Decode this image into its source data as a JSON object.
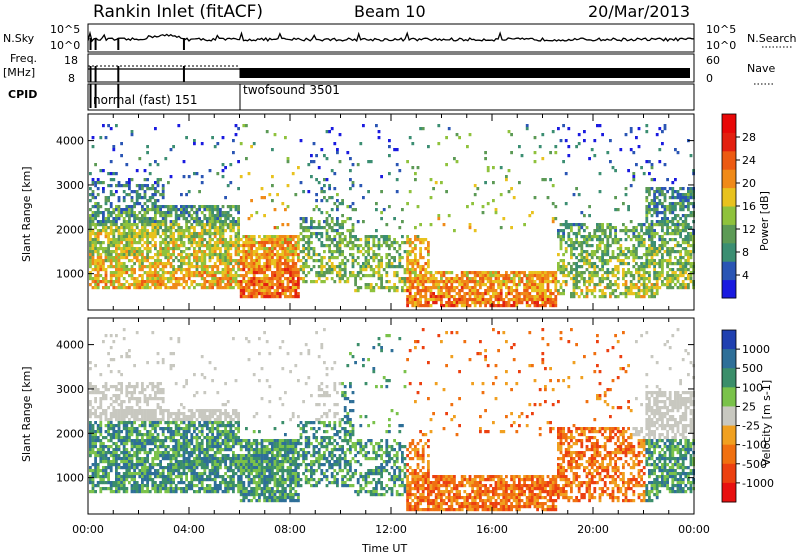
{
  "header": {
    "station": "Rankin Inlet (fitACF)",
    "beam": "Beam 10",
    "date": "20/Mar/2013"
  },
  "top_panels": {
    "nsky_label": "N.Sky",
    "nsearch_label": "N.Search",
    "nsky_ticks": [
      "10^5",
      "10^0"
    ],
    "nsearch_ticks": [
      "10^5",
      "10^0"
    ],
    "freq_label_1": "Freq.",
    "freq_label_2": "[MHz]",
    "freq_ticks": [
      "18",
      "8"
    ],
    "nave_label": "Nave",
    "nave_ticks": [
      "60",
      "0"
    ],
    "cpid_label": "CPID",
    "cpid_modes": [
      {
        "name": "normal (fast) 151",
        "start_hour": 0,
        "end_hour": 6
      },
      {
        "name": "twofsound 3501",
        "start_hour": 6,
        "end_hour": 24
      }
    ]
  },
  "chart_data": [
    {
      "type": "heatmap",
      "title": "",
      "quantity": "Power",
      "ylabel": "Slant Range [km]",
      "xlabel": "",
      "xlim": [
        0,
        24
      ],
      "ylim": [
        180,
        4600
      ],
      "y_ticks": [
        1000,
        2000,
        3000,
        4000
      ],
      "colorbar": {
        "label": "Power [dB]",
        "ticks": [
          4,
          8,
          12,
          16,
          20,
          24,
          28
        ],
        "range": [
          0,
          32
        ],
        "colors": [
          "#1a1ae0",
          "#2a55b4",
          "#3b8e72",
          "#5c9a55",
          "#8fc23c",
          "#e8c21e",
          "#f08a18",
          "#ec5a12",
          "#e32010",
          "#e80808"
        ]
      }
    },
    {
      "type": "heatmap",
      "title": "",
      "quantity": "Velocity",
      "ylabel": "Slant Range [km]",
      "xlabel": "Time UT",
      "xlim": [
        0,
        24
      ],
      "ylim": [
        180,
        4600
      ],
      "y_ticks": [
        1000,
        2000,
        3000,
        4000
      ],
      "x_ticks": [
        "00:00",
        "04:00",
        "08:00",
        "12:00",
        "16:00",
        "20:00",
        "00:00"
      ],
      "colorbar": {
        "label": "Velocity [m s-1]",
        "ticks": [
          "1000",
          "500",
          "100",
          "25",
          "-25",
          "-100",
          "-500",
          "-1000"
        ],
        "colors": [
          "#2040b0",
          "#2e6f98",
          "#3b8e6a",
          "#7ac24a",
          "#c8c8c0",
          "#f0a020",
          "#f07010",
          "#ec4010",
          "#e81010"
        ]
      }
    }
  ]
}
